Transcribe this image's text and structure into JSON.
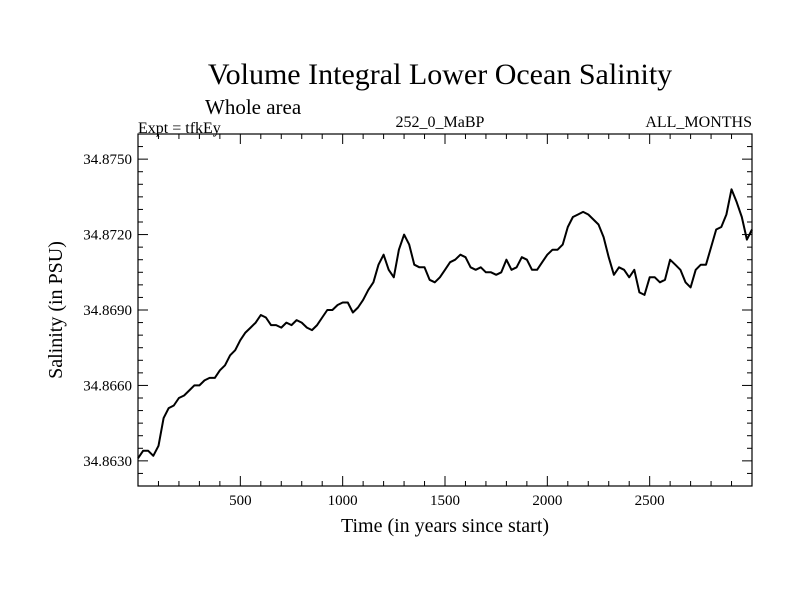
{
  "chart_data": {
    "type": "line",
    "title": "Volume Integral Lower Ocean Salinity",
    "subtitle": "Whole area",
    "left_label": "Expt = tfkEy",
    "center_label": "252_0_MaBP",
    "right_label": "ALL_MONTHS",
    "xlabel": "Time (in years since start)",
    "ylabel": "Salinity (in PSU)",
    "xlim": [
      0,
      3000
    ],
    "ylim": [
      34.862,
      34.876
    ],
    "x_ticks": [
      500,
      1000,
      1500,
      2000,
      2500
    ],
    "x_tick_labels": [
      "500",
      "1000",
      "1500",
      "2000",
      "2500"
    ],
    "y_ticks": [
      34.863,
      34.866,
      34.869,
      34.872,
      34.875
    ],
    "y_tick_labels": [
      "34.8630",
      "34.8660",
      "34.8690",
      "34.8720",
      "34.8750"
    ],
    "grid": false,
    "series": [
      {
        "x": [
          0,
          25,
          50,
          75,
          100,
          125,
          150,
          175,
          200,
          225,
          250,
          275,
          300,
          325,
          350,
          375,
          400,
          425,
          450,
          475,
          500,
          525,
          550,
          575,
          600,
          625,
          650,
          675,
          700,
          725,
          750,
          775,
          800,
          825,
          850,
          875,
          900,
          925,
          950,
          975,
          1000,
          1025,
          1050,
          1075,
          1100,
          1125,
          1150,
          1175,
          1200,
          1225,
          1250,
          1275,
          1300,
          1325,
          1350,
          1375,
          1400,
          1425,
          1450,
          1475,
          1500,
          1525,
          1550,
          1575,
          1600,
          1625,
          1650,
          1675,
          1700,
          1725,
          1750,
          1775,
          1800,
          1825,
          1850,
          1875,
          1900,
          1925,
          1950,
          1975,
          2000,
          2025,
          2050,
          2075,
          2100,
          2125,
          2150,
          2175,
          2200,
          2225,
          2250,
          2275,
          2300,
          2325,
          2350,
          2375,
          2400,
          2425,
          2450,
          2475,
          2500,
          2525,
          2550,
          2575,
          2600,
          2625,
          2650,
          2675,
          2700,
          2725,
          2750,
          2775,
          2800,
          2825,
          2850,
          2875,
          2900,
          2925,
          2950,
          2975,
          3000
        ],
        "values": [
          34.8631,
          34.8634,
          34.8634,
          34.8632,
          34.8636,
          34.8647,
          34.8651,
          34.8652,
          34.8655,
          34.8656,
          34.8658,
          34.866,
          34.866,
          34.8662,
          34.8663,
          34.8663,
          34.8666,
          34.8668,
          34.8672,
          34.8674,
          34.8678,
          34.8681,
          34.8683,
          34.8685,
          34.8688,
          34.8687,
          34.8684,
          34.8684,
          34.8683,
          34.8685,
          34.8684,
          34.8686,
          34.8685,
          34.8683,
          34.8682,
          34.8684,
          34.8687,
          34.869,
          34.869,
          34.8692,
          34.8693,
          34.8693,
          34.8689,
          34.8691,
          34.8694,
          34.8698,
          34.8701,
          34.8708,
          34.8712,
          34.8706,
          34.8703,
          34.8714,
          34.872,
          34.8716,
          34.8708,
          34.8707,
          34.8707,
          34.8702,
          34.8701,
          34.8703,
          34.8706,
          34.8709,
          34.871,
          34.8712,
          34.8711,
          34.8707,
          34.8706,
          34.8707,
          34.8705,
          34.8705,
          34.8704,
          34.8705,
          34.871,
          34.8706,
          34.8707,
          34.8711,
          34.871,
          34.8706,
          34.8706,
          34.8709,
          34.8712,
          34.8714,
          34.8714,
          34.8716,
          34.8723,
          34.8727,
          34.8728,
          34.8729,
          34.8728,
          34.8726,
          34.8724,
          34.8719,
          34.8711,
          34.8704,
          34.8707,
          34.8706,
          34.8703,
          34.8706,
          34.8697,
          34.8696,
          34.8703,
          34.8703,
          34.8701,
          34.8702,
          34.871,
          34.8708,
          34.8706,
          34.8701,
          34.8699,
          34.8706,
          34.8708,
          34.8708,
          34.8715,
          34.8722,
          34.8723,
          34.8728,
          34.8738,
          34.8733,
          34.8727,
          34.8718,
          34.8722
        ]
      }
    ]
  }
}
